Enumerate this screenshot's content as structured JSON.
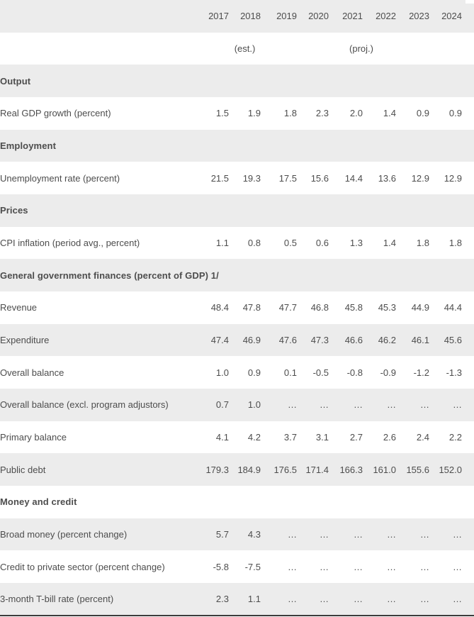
{
  "colors": {
    "stripe_gray": "#ececec",
    "row_white": "#ffffff",
    "text_regular": "#4d4d4d",
    "text_section_bold": "#1d1d1d",
    "bottom_border": "#3b3b3b"
  },
  "table": {
    "years": [
      "2017",
      "2018",
      "2019",
      "2020",
      "2021",
      "2022",
      "2023",
      "2024"
    ],
    "subheader": {
      "est_label": "(est.)",
      "est_column": "2018",
      "proj_label": "(proj.)",
      "proj_columns": [
        "2019",
        "2020",
        "2021",
        "2022",
        "2023",
        "2024"
      ]
    },
    "ellipsis": "…",
    "rows": [
      {
        "type": "section",
        "label": "Output"
      },
      {
        "type": "data",
        "label": "Real GDP growth (percent)",
        "values": [
          "1.5",
          "1.9",
          "1.8",
          "2.3",
          "2.0",
          "1.4",
          "0.9",
          "0.9"
        ]
      },
      {
        "type": "section",
        "label": "Employment"
      },
      {
        "type": "data",
        "label": "Unemployment rate (percent)",
        "values": [
          "21.5",
          "19.3",
          "17.5",
          "15.6",
          "14.4",
          "13.6",
          "12.9",
          "12.9"
        ]
      },
      {
        "type": "section",
        "label": "Prices"
      },
      {
        "type": "data",
        "label": "CPI inflation (period avg., percent)",
        "values": [
          "1.1",
          "0.8",
          "0.5",
          "0.6",
          "1.3",
          "1.4",
          "1.8",
          "1.8"
        ]
      },
      {
        "type": "section",
        "label": "General government finances (percent of GDP) 1/"
      },
      {
        "type": "data",
        "label": "Revenue",
        "values": [
          "48.4",
          "47.8",
          "47.7",
          "46.8",
          "45.8",
          "45.3",
          "44.9",
          "44.4"
        ]
      },
      {
        "type": "data",
        "label": "Expenditure",
        "values": [
          "47.4",
          "46.9",
          "47.6",
          "47.3",
          "46.6",
          "46.2",
          "46.1",
          "45.6"
        ]
      },
      {
        "type": "data",
        "label": "Overall balance",
        "values": [
          "1.0",
          "0.9",
          "0.1",
          "-0.5",
          "-0.8",
          "-0.9",
          "-1.2",
          "-1.3"
        ]
      },
      {
        "type": "data",
        "label": "Overall balance (excl. program adjustors)",
        "values": [
          "0.7",
          "1.0",
          "…",
          "…",
          "…",
          "…",
          "…",
          "…"
        ]
      },
      {
        "type": "data",
        "label": "Primary balance",
        "values": [
          "4.1",
          "4.2",
          "3.7",
          "3.1",
          "2.7",
          "2.6",
          "2.4",
          "2.2"
        ]
      },
      {
        "type": "data",
        "label": "Public debt",
        "values": [
          "179.3",
          "184.9",
          "176.5",
          "171.4",
          "166.3",
          "161.0",
          "155.6",
          "152.0"
        ]
      },
      {
        "type": "section",
        "label": "Money and credit"
      },
      {
        "type": "data",
        "label": "Broad money (percent change)",
        "values": [
          "5.7",
          "4.3",
          "…",
          "…",
          "…",
          "…",
          "…",
          "…"
        ]
      },
      {
        "type": "data",
        "label": "Credit to private sector (percent change)",
        "values": [
          "-5.8",
          "-7.5",
          "…",
          "…",
          "…",
          "…",
          "…",
          "…"
        ]
      },
      {
        "type": "data",
        "label": "3-month T-bill rate (percent)",
        "values": [
          "2.3",
          "1.1",
          "…",
          "…",
          "…",
          "…",
          "…",
          "…"
        ]
      }
    ]
  },
  "chart_data": {
    "type": "table",
    "title": "",
    "columns": [
      "2017",
      "2018",
      "2019",
      "2020",
      "2021",
      "2022",
      "2023",
      "2024"
    ],
    "column_notes": [
      {
        "note": "(est.)",
        "applies_to": [
          "2018"
        ]
      },
      {
        "note": "(proj.)",
        "applies_to": [
          "2019",
          "2020",
          "2021",
          "2022",
          "2023",
          "2024"
        ]
      }
    ],
    "sections": [
      {
        "section": "Output",
        "rows": [
          {
            "label": "Real GDP growth (percent)",
            "values": [
              1.5,
              1.9,
              1.8,
              2.3,
              2.0,
              1.4,
              0.9,
              0.9
            ]
          }
        ]
      },
      {
        "section": "Employment",
        "rows": [
          {
            "label": "Unemployment rate (percent)",
            "values": [
              21.5,
              19.3,
              17.5,
              15.6,
              14.4,
              13.6,
              12.9,
              12.9
            ]
          }
        ]
      },
      {
        "section": "Prices",
        "rows": [
          {
            "label": "CPI inflation (period avg., percent)",
            "values": [
              1.1,
              0.8,
              0.5,
              0.6,
              1.3,
              1.4,
              1.8,
              1.8
            ]
          }
        ]
      },
      {
        "section": "General government finances (percent of GDP) 1/",
        "rows": [
          {
            "label": "Revenue",
            "values": [
              48.4,
              47.8,
              47.7,
              46.8,
              45.8,
              45.3,
              44.9,
              44.4
            ]
          },
          {
            "label": "Expenditure",
            "values": [
              47.4,
              46.9,
              47.6,
              47.3,
              46.6,
              46.2,
              46.1,
              45.6
            ]
          },
          {
            "label": "Overall balance",
            "values": [
              1.0,
              0.9,
              0.1,
              -0.5,
              -0.8,
              -0.9,
              -1.2,
              -1.3
            ]
          },
          {
            "label": "Overall balance (excl. program adjustors)",
            "values": [
              0.7,
              1.0,
              null,
              null,
              null,
              null,
              null,
              null
            ]
          },
          {
            "label": "Primary balance",
            "values": [
              4.1,
              4.2,
              3.7,
              3.1,
              2.7,
              2.6,
              2.4,
              2.2
            ]
          },
          {
            "label": "Public debt",
            "values": [
              179.3,
              184.9,
              176.5,
              171.4,
              166.3,
              161.0,
              155.6,
              152.0
            ]
          }
        ]
      },
      {
        "section": "Money and credit",
        "rows": [
          {
            "label": "Broad money (percent change)",
            "values": [
              5.7,
              4.3,
              null,
              null,
              null,
              null,
              null,
              null
            ]
          },
          {
            "label": "Credit to private sector (percent change)",
            "values": [
              -5.8,
              -7.5,
              null,
              null,
              null,
              null,
              null,
              null
            ]
          },
          {
            "label": "3-month T-bill rate (percent)",
            "values": [
              2.3,
              1.1,
              null,
              null,
              null,
              null,
              null,
              null
            ]
          }
        ]
      }
    ]
  }
}
